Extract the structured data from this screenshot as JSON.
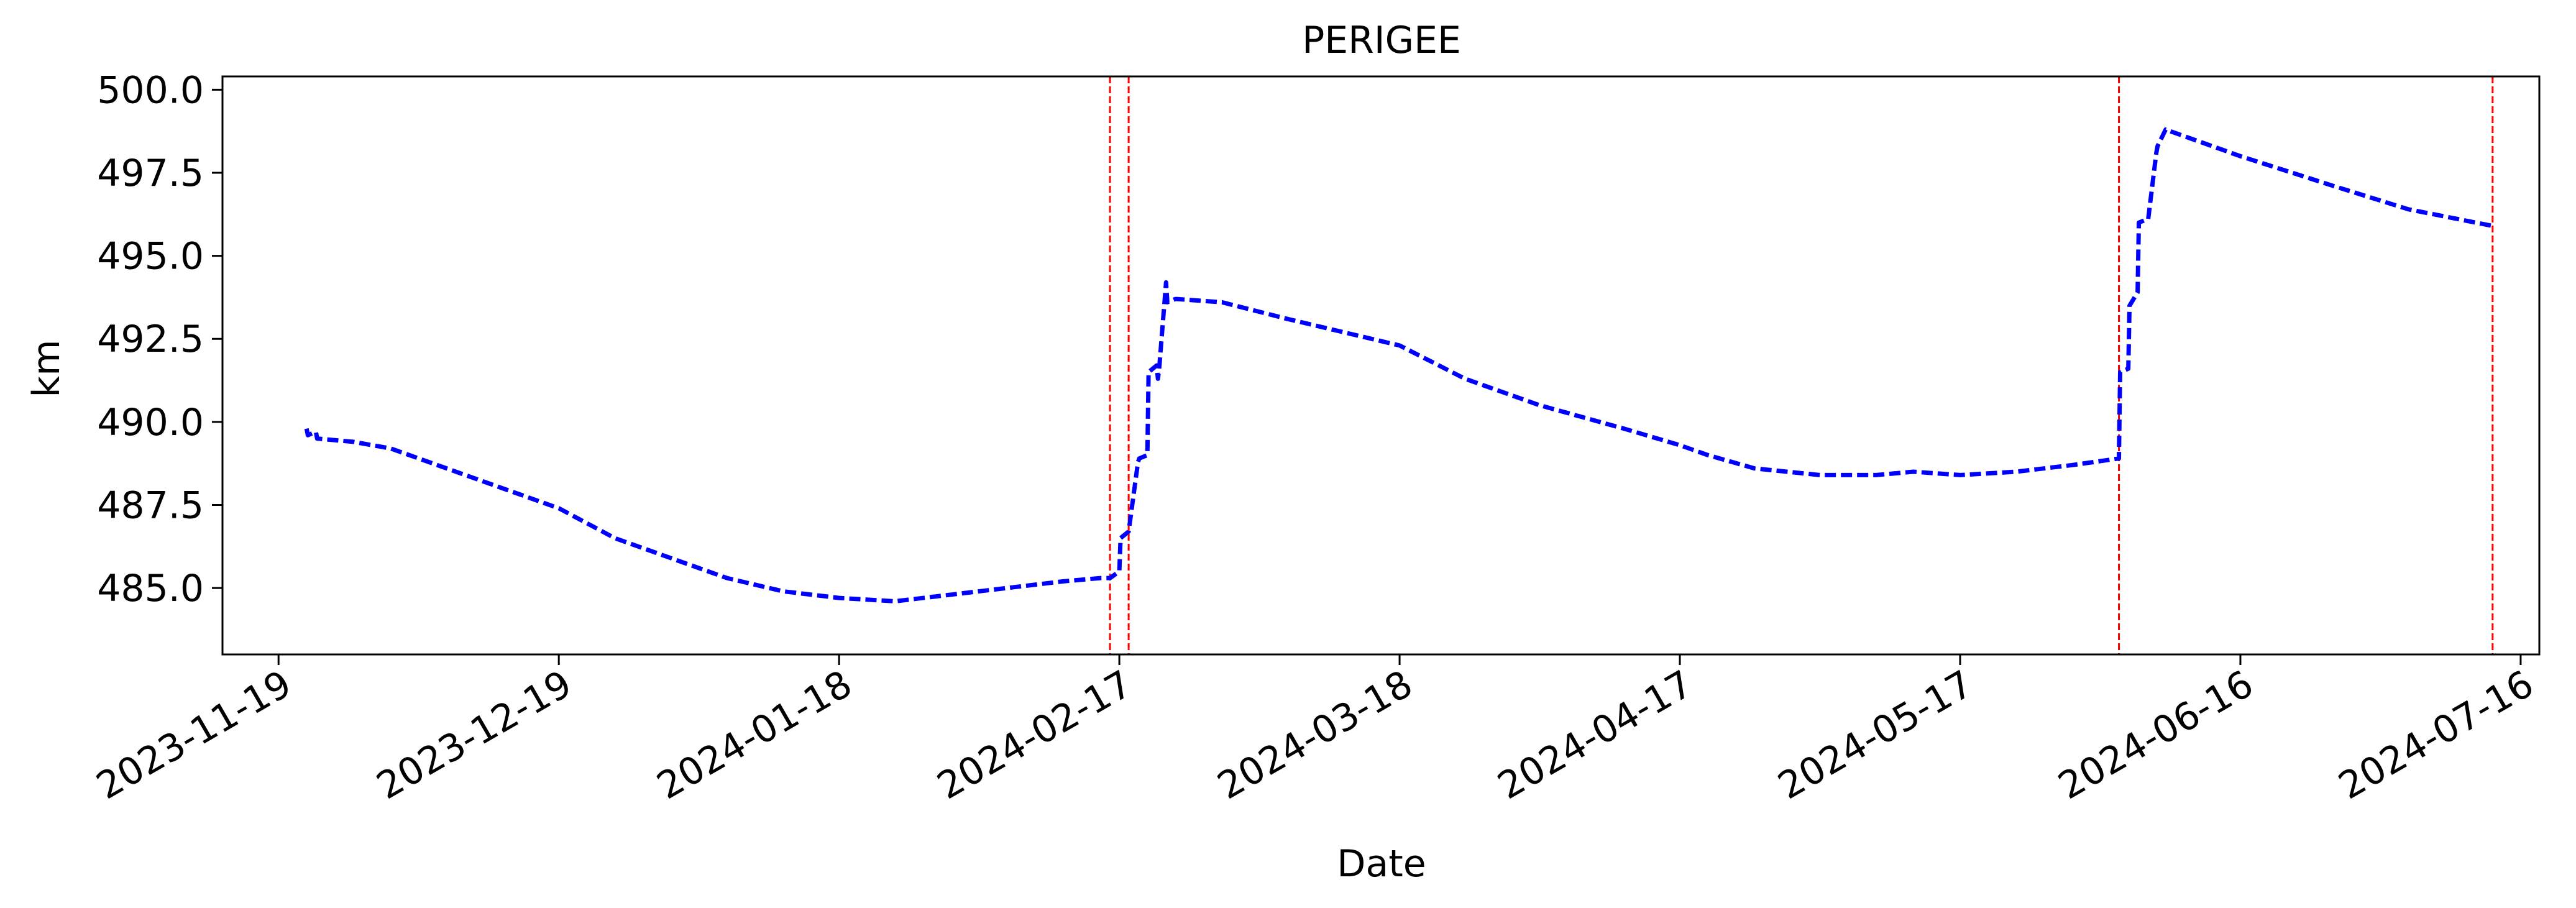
{
  "chart_data": {
    "type": "line",
    "title": "PERIGEE",
    "xlabel": "Date",
    "ylabel": "km",
    "x_range": [
      "2023-11-13",
      "2024-07-18"
    ],
    "ylim": [
      483.0,
      500.4
    ],
    "grid": false,
    "legend": "none",
    "line_color": "#0000ff",
    "line_style": "dashed",
    "vline_color": "#ff0000",
    "vline_style": "dashed",
    "xticks": [
      "2023-11-19",
      "2023-12-19",
      "2024-01-18",
      "2024-02-17",
      "2024-03-18",
      "2024-04-17",
      "2024-05-17",
      "2024-06-16",
      "2024-07-16"
    ],
    "yticks": [
      "485.0",
      "487.5",
      "490.0",
      "492.5",
      "495.0",
      "497.5",
      "500.0"
    ],
    "vlines": [
      "2024-02-16",
      "2024-02-18",
      "2024-06-03",
      "2024-07-13"
    ],
    "series": [
      {
        "x": [
          "2023-11-22",
          "2023-11-22",
          "2023-11-23",
          "2023-11-23",
          "2023-11-27",
          "2023-12-01",
          "2023-12-07",
          "2023-12-13",
          "2023-12-19",
          "2023-12-25",
          "2023-12-31",
          "2024-01-06",
          "2024-01-12",
          "2024-01-18",
          "2024-01-24",
          "2024-01-30",
          "2024-02-05",
          "2024-02-11",
          "2024-02-15",
          "2024-02-16",
          "2024-02-17",
          "2024-02-17",
          "2024-02-18",
          "2024-02-19",
          "2024-02-19",
          "2024-02-20",
          "2024-02-20",
          "2024-02-21",
          "2024-02-21",
          "2024-02-21",
          "2024-02-22",
          "2024-02-22",
          "2024-02-23",
          "2024-02-23",
          "2024-02-28",
          "2024-03-06",
          "2024-03-18",
          "2024-03-25",
          "2024-04-02",
          "2024-04-11",
          "2024-04-17",
          "2024-04-20",
          "2024-04-25",
          "2024-05-02",
          "2024-05-08",
          "2024-05-12",
          "2024-05-17",
          "2024-05-23",
          "2024-05-29",
          "2024-06-03",
          "2024-06-03",
          "2024-06-04",
          "2024-06-04",
          "2024-06-05",
          "2024-06-05",
          "2024-06-06",
          "2024-06-06",
          "2024-06-07",
          "2024-06-07",
          "2024-06-08",
          "2024-06-16",
          "2024-06-26",
          "2024-07-04",
          "2024-07-13"
        ],
        "y": [
          489.8,
          489.6,
          489.7,
          489.5,
          489.4,
          489.2,
          488.6,
          488.0,
          487.4,
          486.5,
          485.9,
          485.3,
          484.9,
          484.7,
          484.6,
          484.8,
          485.0,
          485.2,
          485.3,
          485.3,
          485.5,
          486.5,
          486.7,
          488.8,
          488.9,
          489.0,
          491.5,
          491.7,
          491.3,
          491.6,
          494.2,
          493.6,
          493.7,
          493.7,
          493.6,
          493.1,
          492.3,
          491.3,
          490.5,
          489.8,
          489.3,
          489.0,
          488.6,
          488.4,
          488.4,
          488.5,
          488.4,
          488.5,
          488.7,
          488.9,
          491.5,
          491.6,
          493.5,
          493.9,
          496.0,
          496.1,
          496.1,
          498.1,
          498.3,
          498.8,
          498.0,
          497.1,
          496.4,
          495.9
        ]
      }
    ]
  }
}
